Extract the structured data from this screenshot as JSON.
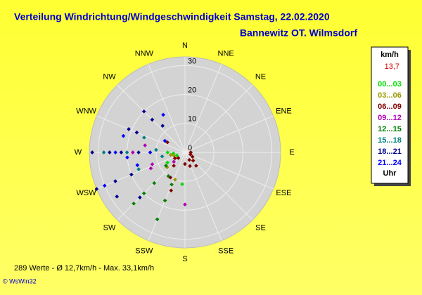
{
  "chart_data": {
    "type": "polar-scatter",
    "title": "Verteilung Windrichtung/Windgeschwindigkeit  Samstag, 22.02.2020",
    "subtitle": "Bannewitz OT. Wilmsdorf",
    "directions": [
      "N",
      "NNE",
      "NE",
      "ENE",
      "E",
      "ESE",
      "SE",
      "SSE",
      "S",
      "SSW",
      "SW",
      "WSW",
      "W",
      "WNW",
      "NW",
      "NNW"
    ],
    "rlim": [
      0,
      33
    ],
    "rticks": [
      0,
      10,
      20,
      30
    ],
    "legend_unit": "km/h",
    "legend_current": "13,7",
    "legend_footer": "Uhr",
    "footer": "289 Werte   -   Ø 12,7km/h  -  Max. 33,1km/h",
    "credit": "© WsWin32",
    "series": [
      {
        "name": "00...03",
        "color": "#00dd00",
        "dir": [
          270,
          265,
          250,
          185,
          240
        ],
        "speed": [
          6,
          4,
          3,
          11,
          7
        ]
      },
      {
        "name": "03...06",
        "color": "#999900",
        "dir": [
          260,
          200,
          230,
          255
        ],
        "speed": [
          5,
          10,
          8,
          4
        ]
      },
      {
        "name": "06...09",
        "color": "#800000",
        "dir": [
          300,
          135,
          150,
          110,
          180,
          200,
          210,
          220,
          120,
          90,
          240,
          230,
          160,
          140
        ],
        "speed": [
          7,
          4,
          3,
          2,
          4,
          14,
          10,
          6,
          3,
          2,
          4,
          3,
          5,
          6
        ]
      },
      {
        "name": "09...12",
        "color": "#b000b0",
        "dir": [
          270,
          280,
          250,
          180,
          230,
          245
        ],
        "speed": [
          18,
          14,
          12,
          18,
          5,
          13
        ]
      },
      {
        "name": "12...15",
        "color": "#008000",
        "dir": [
          225,
          225,
          225,
          202.5,
          202.5,
          202.5,
          235,
          215
        ],
        "speed": [
          25,
          20,
          15,
          25,
          18,
          12,
          8,
          10
        ]
      },
      {
        "name": "15...18",
        "color": "#008080",
        "dir": [
          270,
          270,
          290,
          275,
          250,
          260
        ],
        "speed": [
          28,
          20,
          15,
          10,
          17,
          8
        ]
      },
      {
        "name": "18...21",
        "color": "#000090",
        "dir": [
          270,
          270,
          270,
          270,
          247.5,
          247.5,
          247.5,
          292.5,
          292.5,
          315,
          315,
          320,
          225,
          237
        ],
        "speed": [
          32,
          26,
          22,
          16,
          33,
          26,
          20,
          21,
          18,
          20,
          16,
          12,
          22,
          28
        ]
      },
      {
        "name": "21...24",
        "color": "#0000ff",
        "dir": [
          270,
          270,
          265,
          247.5,
          255,
          300,
          330,
          285
        ],
        "speed": [
          24,
          12,
          20,
          30,
          17,
          8,
          15,
          22
        ]
      }
    ]
  }
}
